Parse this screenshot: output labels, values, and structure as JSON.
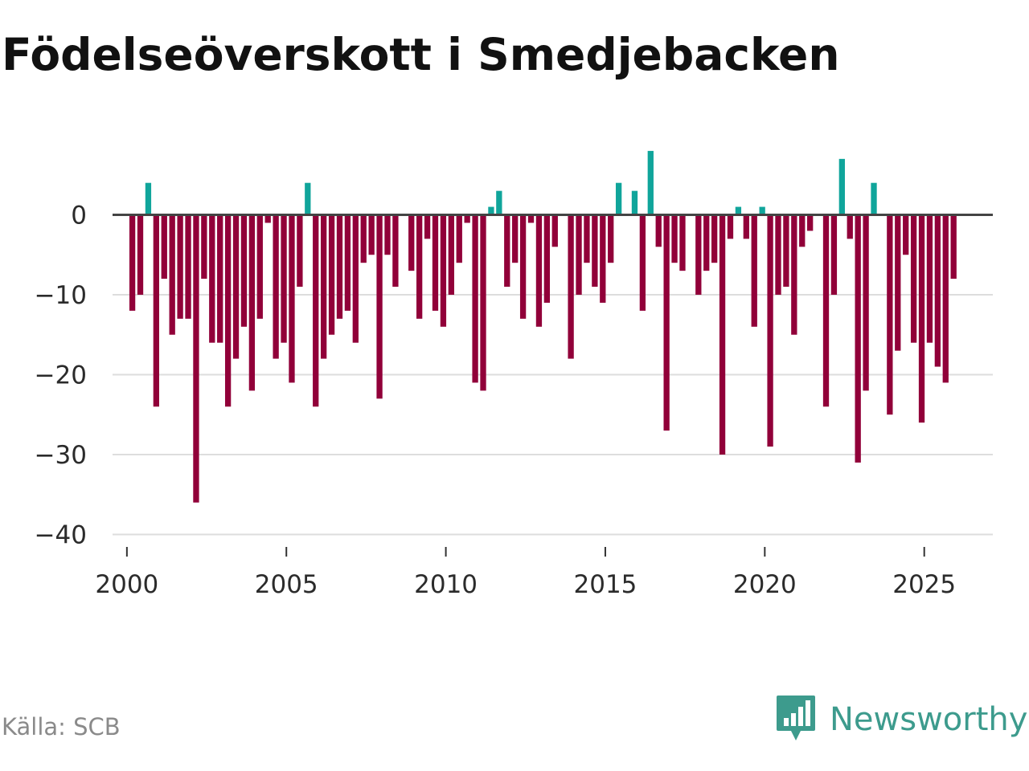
{
  "title": "Födelseöverskott i Smedjebacken",
  "source": "Källa: SCB",
  "brand": {
    "name": "Newsworthy",
    "icon": "newsworthy-logo-icon"
  },
  "colors": {
    "positive": "#10a59b",
    "negative": "#910039",
    "zero_line": "#444444",
    "grid": "#dddddd",
    "brand": "#3d9b8d"
  },
  "chart_data": {
    "type": "bar",
    "title": "Födelseöverskott i Smedjebacken",
    "xlabel": "",
    "ylabel": "",
    "xlim": [
      1999.55,
      2027.15
    ],
    "ylim": [
      -40,
      8
    ],
    "grid": true,
    "y_ticks": [
      0,
      -10,
      -20,
      -30,
      -40
    ],
    "y_tick_labels": [
      "0",
      "−10",
      "−20",
      "−30",
      "−40"
    ],
    "x_ticks": [
      2000,
      2005,
      2010,
      2015,
      2020,
      2025
    ],
    "x_tick_labels": [
      "2000",
      "2005",
      "2010",
      "2015",
      "2020",
      "2025"
    ],
    "series": [
      {
        "name": "Födelseöverskott",
        "x": [
          2000.17,
          2000.42,
          2000.67,
          2000.92,
          2001.17,
          2001.42,
          2001.67,
          2001.92,
          2002.17,
          2002.42,
          2002.67,
          2002.92,
          2003.17,
          2003.42,
          2003.67,
          2003.92,
          2004.17,
          2004.42,
          2004.67,
          2004.92,
          2005.17,
          2005.42,
          2005.67,
          2005.92,
          2006.17,
          2006.42,
          2006.67,
          2006.92,
          2007.17,
          2007.42,
          2007.67,
          2007.92,
          2008.17,
          2008.42,
          2008.67,
          2008.92,
          2009.17,
          2009.42,
          2009.67,
          2009.92,
          2010.17,
          2010.42,
          2010.67,
          2010.92,
          2011.17,
          2011.42,
          2011.67,
          2011.92,
          2012.17,
          2012.42,
          2012.67,
          2012.92,
          2013.17,
          2013.42,
          2013.67,
          2013.92,
          2014.17,
          2014.42,
          2014.67,
          2014.92,
          2015.17,
          2015.42,
          2015.67,
          2015.92,
          2016.17,
          2016.42,
          2016.67,
          2016.92,
          2017.17,
          2017.42,
          2017.67,
          2017.92,
          2018.17,
          2018.42,
          2018.67,
          2018.92,
          2019.17,
          2019.42,
          2019.67,
          2019.92,
          2020.17,
          2020.42,
          2020.67,
          2020.92,
          2021.17,
          2021.42,
          2021.67,
          2021.92,
          2022.17,
          2022.42,
          2022.67,
          2022.92,
          2023.17,
          2023.42,
          2023.67,
          2023.92,
          2024.17,
          2024.42,
          2024.67,
          2024.92,
          2025.17,
          2025.42,
          2025.67,
          2025.92
        ],
        "values": [
          -12,
          -10,
          4,
          -24,
          -8,
          -15,
          -13,
          -13,
          -36,
          -8,
          -16,
          -16,
          -24,
          -18,
          -14,
          -22,
          -13,
          -1,
          -18,
          -16,
          -21,
          -9,
          4,
          -24,
          -18,
          -15,
          -13,
          -12,
          -16,
          -6,
          -5,
          -23,
          -5,
          -9,
          0,
          -7,
          -13,
          -3,
          -12,
          -14,
          -10,
          -6,
          -1,
          -21,
          -22,
          1,
          3,
          -9,
          -6,
          -13,
          -1,
          -14,
          -11,
          -4,
          0,
          -18,
          -10,
          -6,
          -9,
          -11,
          -6,
          4,
          0,
          3,
          -12,
          8,
          -4,
          -27,
          -6,
          -7,
          0,
          -10,
          -7,
          -6,
          -30,
          -3,
          1,
          -3,
          -14,
          1,
          -29,
          -10,
          -9,
          -15,
          -4,
          -2,
          0,
          -24,
          -10,
          7,
          -3,
          -31,
          -22,
          4,
          0,
          -25,
          -17,
          -5,
          -16,
          -26,
          -16,
          -19,
          -21,
          -8
        ]
      }
    ]
  }
}
